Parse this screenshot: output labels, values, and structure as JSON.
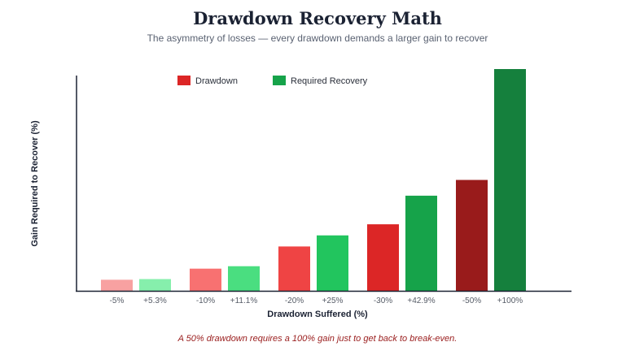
{
  "header": {
    "title": "Drawdown Recovery Math",
    "subtitle": "The asymmetry of losses — every drawdown demands a larger gain to recover"
  },
  "caption": "A 50% drawdown requires a 100% gain just to get back to break-even.",
  "chart_data": {
    "type": "bar",
    "title": "Drawdown Recovery Math",
    "xlabel": "Drawdown Suffered (%)",
    "ylabel": "Gain Required to Recover (%)",
    "ylim": [
      0,
      100
    ],
    "y_ticks_shown": false,
    "grid": false,
    "legend_position": "top-center",
    "legend": [
      {
        "label": "Drawdown",
        "color": "#dc2626"
      },
      {
        "label": "Required Recovery",
        "color": "#16a34a"
      }
    ],
    "groups": [
      {
        "drawdown": {
          "label": "-5%",
          "value": 5,
          "color": "#f8a1a1"
        },
        "recovery": {
          "label": "+5.3%",
          "value": 5.3,
          "color": "#86efac"
        }
      },
      {
        "drawdown": {
          "label": "-10%",
          "value": 10,
          "color": "#f87171"
        },
        "recovery": {
          "label": "+11.1%",
          "value": 11.1,
          "color": "#4ade80"
        }
      },
      {
        "drawdown": {
          "label": "-20%",
          "value": 20,
          "color": "#ef4444"
        },
        "recovery": {
          "label": "+25%",
          "value": 25,
          "color": "#22c55e"
        }
      },
      {
        "drawdown": {
          "label": "-30%",
          "value": 30,
          "color": "#dc2626"
        },
        "recovery": {
          "label": "+42.9%",
          "value": 42.9,
          "color": "#16a34a"
        }
      },
      {
        "drawdown": {
          "label": "-50%",
          "value": 50,
          "color": "#991b1b"
        },
        "recovery": {
          "label": "+100%",
          "value": 100,
          "color": "#15803d"
        }
      }
    ]
  }
}
